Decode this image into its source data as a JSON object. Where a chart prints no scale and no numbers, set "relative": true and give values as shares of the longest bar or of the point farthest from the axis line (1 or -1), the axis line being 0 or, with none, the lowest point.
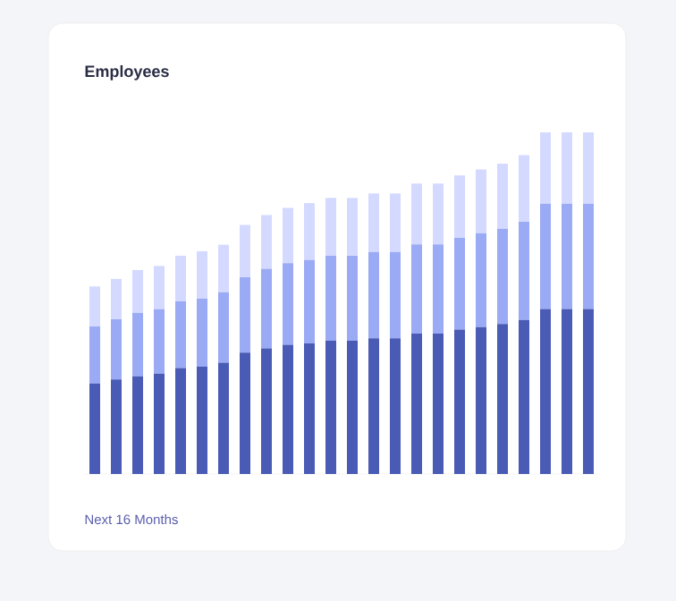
{
  "chart_data": {
    "type": "bar",
    "title": "Employees",
    "annotations": [
      "Next 16 Months"
    ],
    "stacked": true,
    "relative": true,
    "categories": [
      null,
      null,
      null,
      null,
      null,
      null,
      null,
      null,
      null,
      null,
      null,
      null,
      null,
      null,
      null,
      null,
      null,
      null,
      null,
      null,
      null,
      null,
      null,
      null
    ],
    "series": [
      {
        "color": "#4a5bb5",
        "values": [
          0.265,
          0.277,
          0.286,
          0.294,
          0.31,
          0.314,
          0.326,
          0.355,
          0.368,
          0.378,
          0.382,
          0.39,
          0.39,
          0.397,
          0.397,
          0.411,
          0.411,
          0.423,
          0.43,
          0.439,
          0.451,
          0.483,
          0.483,
          0.483
        ]
      },
      {
        "color": "#9aaaf5",
        "values": [
          0.167,
          0.176,
          0.186,
          0.188,
          0.195,
          0.2,
          0.206,
          0.221,
          0.233,
          0.239,
          0.244,
          0.249,
          0.249,
          0.253,
          0.253,
          0.261,
          0.261,
          0.268,
          0.275,
          0.279,
          0.287,
          0.308,
          0.308,
          0.308
        ]
      },
      {
        "color": "#d4daff",
        "values": [
          0.117,
          0.118,
          0.125,
          0.127,
          0.134,
          0.138,
          0.139,
          0.153,
          0.157,
          0.162,
          0.167,
          0.169,
          0.169,
          0.171,
          0.171,
          0.178,
          0.178,
          0.183,
          0.186,
          0.19,
          0.195,
          0.209,
          0.209,
          0.209
        ]
      }
    ]
  }
}
